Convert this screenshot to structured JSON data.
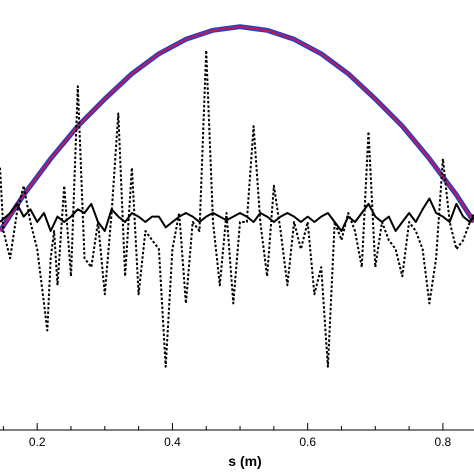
{
  "chart_data": {
    "type": "line",
    "xlabel": "s (m)",
    "xlim": [
      0.145,
      0.846
    ],
    "ylim": [
      -1.3,
      1.0
    ],
    "x_ticks": [
      0.2,
      0.4,
      0.6,
      0.8
    ],
    "x_tick_labels": [
      "0.2",
      "0.4",
      "0.6",
      "0.8"
    ],
    "grid": false,
    "series": [
      {
        "style": "solid-thick",
        "color": "#2a3fbf",
        "overlay_color": "#c0185a",
        "x": [
          0.145,
          0.18,
          0.22,
          0.26,
          0.3,
          0.34,
          0.38,
          0.42,
          0.46,
          0.5,
          0.54,
          0.58,
          0.62,
          0.66,
          0.7,
          0.74,
          0.78,
          0.82,
          0.846
        ],
        "y": [
          -0.2,
          0.0,
          0.2,
          0.38,
          0.53,
          0.67,
          0.78,
          0.86,
          0.91,
          0.93,
          0.91,
          0.86,
          0.78,
          0.67,
          0.53,
          0.38,
          0.2,
          0.0,
          -0.15
        ]
      },
      {
        "style": "dotted",
        "color": "#000000",
        "x": [
          0.145,
          0.15,
          0.16,
          0.17,
          0.18,
          0.19,
          0.2,
          0.21,
          0.215,
          0.22,
          0.225,
          0.23,
          0.24,
          0.25,
          0.26,
          0.27,
          0.28,
          0.29,
          0.3,
          0.31,
          0.32,
          0.33,
          0.34,
          0.35,
          0.36,
          0.37,
          0.38,
          0.39,
          0.4,
          0.41,
          0.42,
          0.43,
          0.44,
          0.45,
          0.46,
          0.47,
          0.48,
          0.49,
          0.5,
          0.51,
          0.52,
          0.53,
          0.54,
          0.55,
          0.56,
          0.57,
          0.58,
          0.59,
          0.6,
          0.61,
          0.62,
          0.63,
          0.64,
          0.65,
          0.66,
          0.67,
          0.68,
          0.69,
          0.7,
          0.71,
          0.72,
          0.73,
          0.74,
          0.75,
          0.76,
          0.77,
          0.78,
          0.79,
          0.8,
          0.81,
          0.82,
          0.83,
          0.84,
          0.846
        ],
        "y": [
          0.15,
          -0.2,
          -0.35,
          -0.1,
          0.05,
          -0.15,
          -0.3,
          -0.6,
          -0.75,
          -0.35,
          -0.2,
          -0.5,
          0.05,
          -0.45,
          0.6,
          -0.35,
          -0.4,
          -0.15,
          -0.55,
          -0.1,
          0.45,
          -0.45,
          0.15,
          -0.55,
          -0.2,
          -0.25,
          -0.3,
          -0.95,
          -0.3,
          -0.1,
          -0.6,
          -0.15,
          -0.2,
          0.8,
          -0.15,
          -0.5,
          -0.1,
          -0.6,
          -0.15,
          -0.15,
          0.38,
          -0.15,
          -0.45,
          0.05,
          -0.2,
          -0.5,
          -0.15,
          -0.3,
          -0.15,
          -0.55,
          -0.4,
          -0.95,
          -0.15,
          -0.25,
          -0.1,
          -0.2,
          -0.4,
          0.35,
          -0.4,
          -0.15,
          -0.25,
          -0.3,
          -0.45,
          -0.15,
          -0.2,
          -0.3,
          -0.6,
          -0.35,
          0.2,
          -0.15,
          -0.3,
          -0.25,
          -0.15,
          -0.1
        ]
      },
      {
        "style": "solid",
        "color": "#000000",
        "x": [
          0.145,
          0.16,
          0.17,
          0.18,
          0.19,
          0.2,
          0.21,
          0.22,
          0.23,
          0.24,
          0.25,
          0.26,
          0.27,
          0.28,
          0.29,
          0.3,
          0.31,
          0.32,
          0.33,
          0.34,
          0.35,
          0.36,
          0.37,
          0.38,
          0.39,
          0.4,
          0.41,
          0.42,
          0.43,
          0.44,
          0.45,
          0.46,
          0.47,
          0.48,
          0.49,
          0.5,
          0.51,
          0.52,
          0.53,
          0.54,
          0.55,
          0.56,
          0.57,
          0.58,
          0.59,
          0.6,
          0.61,
          0.62,
          0.63,
          0.64,
          0.65,
          0.66,
          0.67,
          0.68,
          0.69,
          0.7,
          0.71,
          0.72,
          0.73,
          0.74,
          0.75,
          0.76,
          0.77,
          0.78,
          0.79,
          0.8,
          0.81,
          0.82,
          0.83,
          0.84,
          0.846
        ],
        "y": [
          -0.15,
          -0.1,
          -0.05,
          -0.12,
          -0.08,
          -0.15,
          -0.1,
          -0.2,
          -0.12,
          -0.15,
          -0.12,
          -0.08,
          -0.1,
          -0.05,
          -0.15,
          -0.2,
          -0.08,
          -0.12,
          -0.15,
          -0.1,
          -0.12,
          -0.15,
          -0.12,
          -0.12,
          -0.18,
          -0.15,
          -0.12,
          -0.1,
          -0.12,
          -0.15,
          -0.12,
          -0.1,
          -0.12,
          -0.14,
          -0.12,
          -0.1,
          -0.12,
          -0.15,
          -0.1,
          -0.12,
          -0.15,
          -0.12,
          -0.1,
          -0.12,
          -0.15,
          -0.12,
          -0.15,
          -0.12,
          -0.1,
          -0.15,
          -0.2,
          -0.12,
          -0.15,
          -0.1,
          -0.05,
          -0.12,
          -0.15,
          -0.12,
          -0.2,
          -0.15,
          -0.1,
          -0.15,
          -0.08,
          -0.02,
          -0.1,
          -0.12,
          -0.15,
          -0.05,
          -0.12,
          -0.15,
          -0.12
        ]
      }
    ]
  }
}
